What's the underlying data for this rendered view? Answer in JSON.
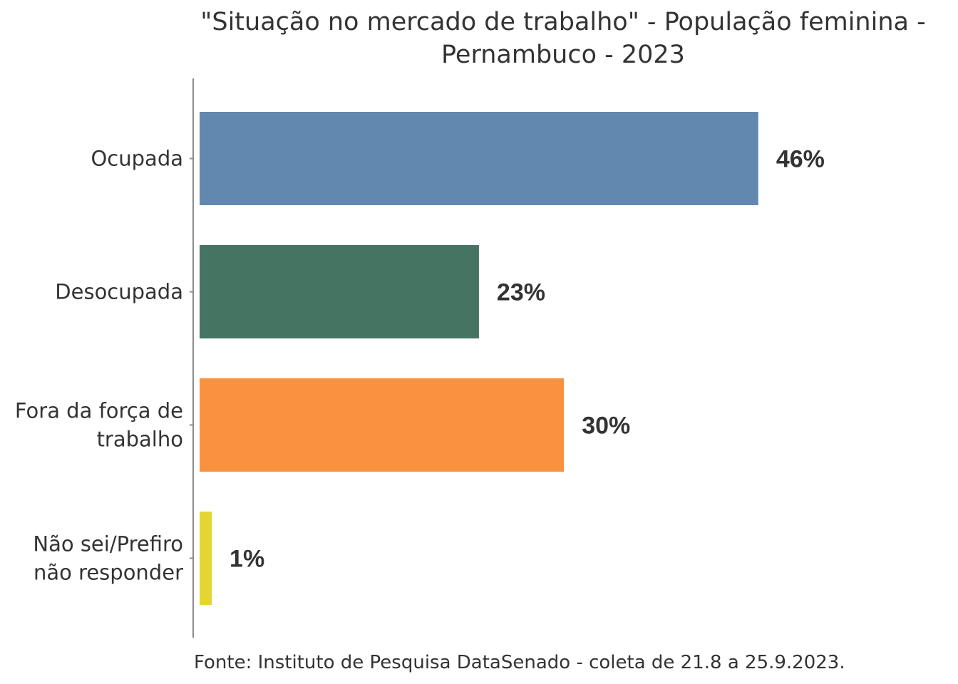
{
  "chart_data": {
    "type": "bar",
    "orientation": "horizontal",
    "title": "\"Situação no mercado de trabalho\" - População feminina - Pernambuco - 2023",
    "title_lines": [
      "\"Situação no mercado de trabalho\" - População feminina -",
      "Pernambuco - 2023"
    ],
    "categories": [
      [
        "Ocupada"
      ],
      [
        "Desocupada"
      ],
      [
        "Fora da força de",
        "trabalho"
      ],
      [
        "Não sei/Prefiro",
        "não responder"
      ]
    ],
    "values": [
      46,
      23,
      30,
      1
    ],
    "value_labels": [
      "46%",
      "23%",
      "30%",
      "1%"
    ],
    "colors": [
      "#6388af",
      "#457463",
      "#f9923e",
      "#e4d434"
    ],
    "xlim": [
      0,
      55
    ],
    "xlabel": "",
    "ylabel": "",
    "grid": false,
    "legend": "none",
    "source": "Fonte: Instituto de Pesquisa DataSenado - coleta de 21.8 a 25.9.2023."
  }
}
